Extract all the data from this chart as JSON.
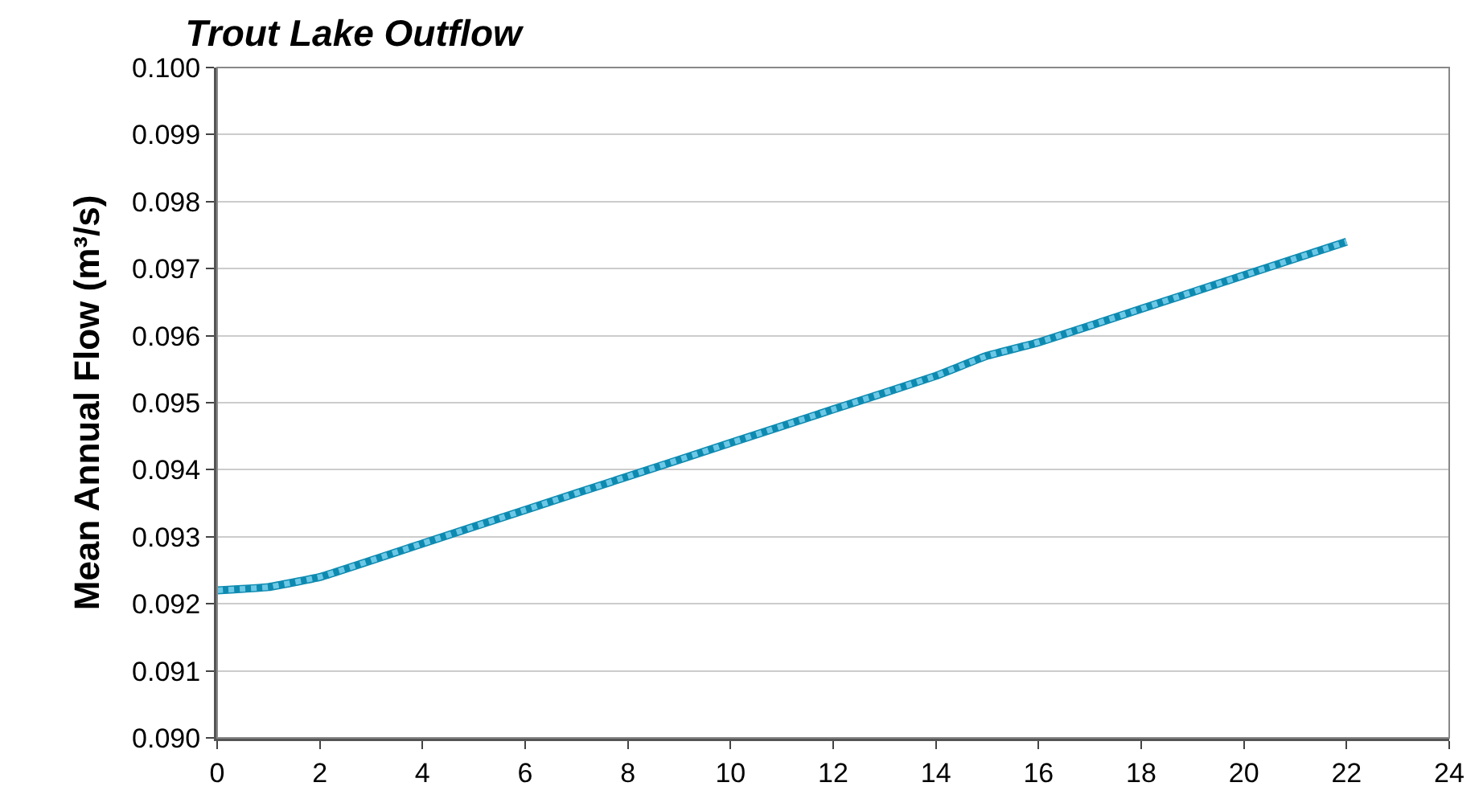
{
  "chart_data": {
    "type": "line",
    "title": "Trout Lake Outflow",
    "ylabel": "Mean Annual Flow (m³/s)",
    "x": [
      0,
      1,
      2,
      4,
      6,
      8,
      10,
      12,
      14,
      15,
      16,
      18,
      20,
      22
    ],
    "series": [
      {
        "color": "#0e8ab0",
        "line_style": "solid",
        "values": [
          0.0922,
          0.09225,
          0.0924,
          0.0929,
          0.0934,
          0.0939,
          0.0944,
          0.0949,
          0.0954,
          0.0957,
          0.0959,
          0.0964,
          0.0969,
          0.0974
        ]
      },
      {
        "color": "#6cc8e6",
        "line_style": "dotted",
        "values": [
          0.0922,
          0.09225,
          0.0924,
          0.0929,
          0.0934,
          0.0939,
          0.0944,
          0.0949,
          0.0954,
          0.0957,
          0.0959,
          0.0964,
          0.0969,
          0.0974
        ]
      }
    ],
    "xlim": [
      0,
      24
    ],
    "xticks": [
      0,
      2,
      4,
      6,
      8,
      10,
      12,
      14,
      16,
      18,
      20,
      22,
      24
    ],
    "ylim": [
      0.09,
      0.1
    ],
    "yticks": [
      {
        "value": 0.09,
        "label": "0.090"
      },
      {
        "value": 0.091,
        "label": "0.091"
      },
      {
        "value": 0.092,
        "label": "0.092"
      },
      {
        "value": 0.093,
        "label": "0.093"
      },
      {
        "value": 0.094,
        "label": "0.094"
      },
      {
        "value": 0.095,
        "label": "0.095"
      },
      {
        "value": 0.096,
        "label": "0.096"
      },
      {
        "value": 0.097,
        "label": "0.097"
      },
      {
        "value": 0.098,
        "label": "0.098"
      },
      {
        "value": 0.099,
        "label": "0.099"
      },
      {
        "value": 0.1,
        "label": "0.100"
      }
    ],
    "grid": "y",
    "marker": "none"
  }
}
